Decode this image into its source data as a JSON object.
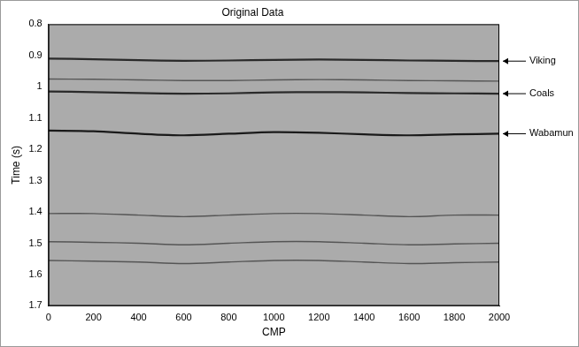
{
  "chart_data": {
    "type": "line",
    "title": "Original Data",
    "x_label": "CMP",
    "y_label": "Time (s)",
    "x": [
      0,
      200,
      400,
      600,
      800,
      1000,
      1200,
      1400,
      1600,
      1800,
      2000
    ],
    "series": [
      {
        "name": "Viking",
        "color": "#2a2a2a",
        "values": [
          0.91,
          0.912,
          0.915,
          0.917,
          0.916,
          0.914,
          0.913,
          0.914,
          0.916,
          0.917,
          0.918
        ]
      },
      {
        "color": "#555555",
        "values": [
          0.975,
          0.976,
          0.978,
          0.98,
          0.98,
          0.978,
          0.977,
          0.978,
          0.98,
          0.981,
          0.982
        ]
      },
      {
        "name": "Coals",
        "color": "#2a2a2a",
        "values": [
          1.015,
          1.017,
          1.02,
          1.022,
          1.021,
          1.018,
          1.017,
          1.018,
          1.02,
          1.021,
          1.022
        ]
      },
      {
        "name": "Wabamun",
        "color": "#1a1a1a",
        "values": [
          1.14,
          1.142,
          1.15,
          1.155,
          1.15,
          1.145,
          1.147,
          1.152,
          1.155,
          1.152,
          1.15
        ]
      },
      {
        "color": "#555555",
        "values": [
          1.405,
          1.405,
          1.41,
          1.415,
          1.41,
          1.405,
          1.405,
          1.41,
          1.415,
          1.41,
          1.41
        ]
      },
      {
        "color": "#555555",
        "values": [
          1.495,
          1.497,
          1.5,
          1.505,
          1.5,
          1.495,
          1.495,
          1.5,
          1.505,
          1.502,
          1.5
        ]
      },
      {
        "color": "#555555",
        "values": [
          1.555,
          1.557,
          1.56,
          1.565,
          1.56,
          1.555,
          1.555,
          1.56,
          1.565,
          1.562,
          1.56
        ]
      }
    ],
    "xlim": [
      0,
      2000
    ],
    "xticks": [
      0,
      200,
      400,
      600,
      800,
      1000,
      1200,
      1400,
      1600,
      1800,
      2000
    ],
    "ylim": [
      0.8,
      1.7
    ],
    "yticks": [
      0.8,
      0.9,
      1,
      1.1,
      1.2,
      1.3,
      1.4,
      1.5,
      1.6,
      1.7
    ],
    "grid": false
  }
}
